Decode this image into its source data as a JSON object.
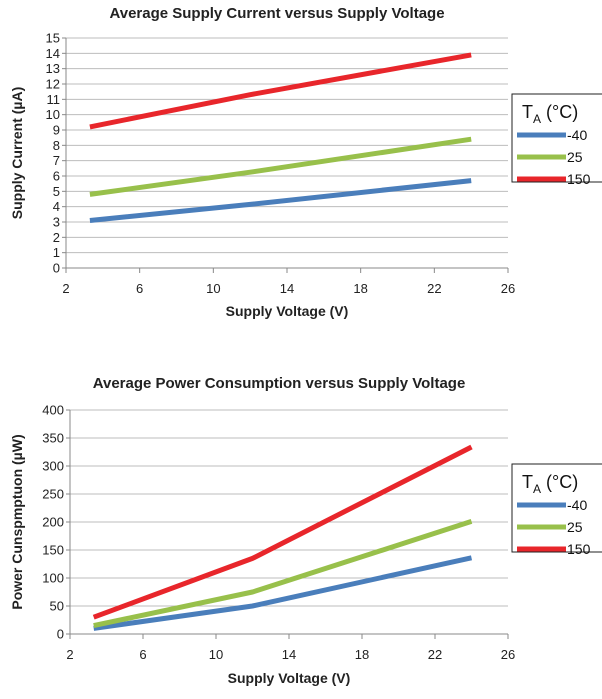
{
  "chart_data": [
    {
      "type": "line",
      "title": "Average Supply Current versus Supply Voltage",
      "xlabel": "Supply Voltage (V)",
      "ylabel": "Supply Current (µA)",
      "xlim": [
        2,
        26
      ],
      "ylim": [
        0,
        15
      ],
      "xticks": [
        2,
        6,
        10,
        14,
        18,
        22,
        26
      ],
      "yticks": [
        0,
        1,
        2,
        3,
        4,
        5,
        6,
        7,
        8,
        9,
        10,
        11,
        12,
        13,
        14,
        15
      ],
      "grid": "horizontal",
      "legend": {
        "title_main": "T",
        "title_sub": "A",
        "title_rest": " (°C)",
        "placement": "right"
      },
      "series": [
        {
          "name": "-40",
          "color": "#4a7ebb",
          "x": [
            3.3,
            12,
            24
          ],
          "y": [
            3.1,
            4.15,
            5.7
          ]
        },
        {
          "name": "25",
          "color": "#98c04b",
          "x": [
            3.3,
            12,
            24
          ],
          "y": [
            4.8,
            6.25,
            8.4
          ]
        },
        {
          "name": "150",
          "color": "#e8262b",
          "x": [
            3.3,
            12,
            24
          ],
          "y": [
            9.2,
            11.3,
            13.9
          ]
        }
      ]
    },
    {
      "type": "line",
      "title": "Average Power Consumption versus Supply Voltage",
      "xlabel": "Supply Voltage (V)",
      "ylabel": "Power Cunspmptuon (µW)",
      "xlim": [
        2,
        26
      ],
      "ylim": [
        0,
        400
      ],
      "xticks": [
        2,
        6,
        10,
        14,
        18,
        22,
        26
      ],
      "yticks": [
        0,
        50,
        100,
        150,
        200,
        250,
        300,
        350,
        400
      ],
      "grid": "horizontal",
      "legend": {
        "title_main": "T",
        "title_sub": "A",
        "title_rest": " (°C)",
        "placement": "right"
      },
      "series": [
        {
          "name": "-40",
          "color": "#4a7ebb",
          "x": [
            3.3,
            12,
            24
          ],
          "y": [
            10,
            50,
            136
          ]
        },
        {
          "name": "25",
          "color": "#98c04b",
          "x": [
            3.3,
            12,
            24
          ],
          "y": [
            15,
            75,
            201
          ]
        },
        {
          "name": "150",
          "color": "#e8262b",
          "x": [
            3.3,
            12,
            24
          ],
          "y": [
            30,
            135,
            334
          ]
        }
      ]
    }
  ]
}
